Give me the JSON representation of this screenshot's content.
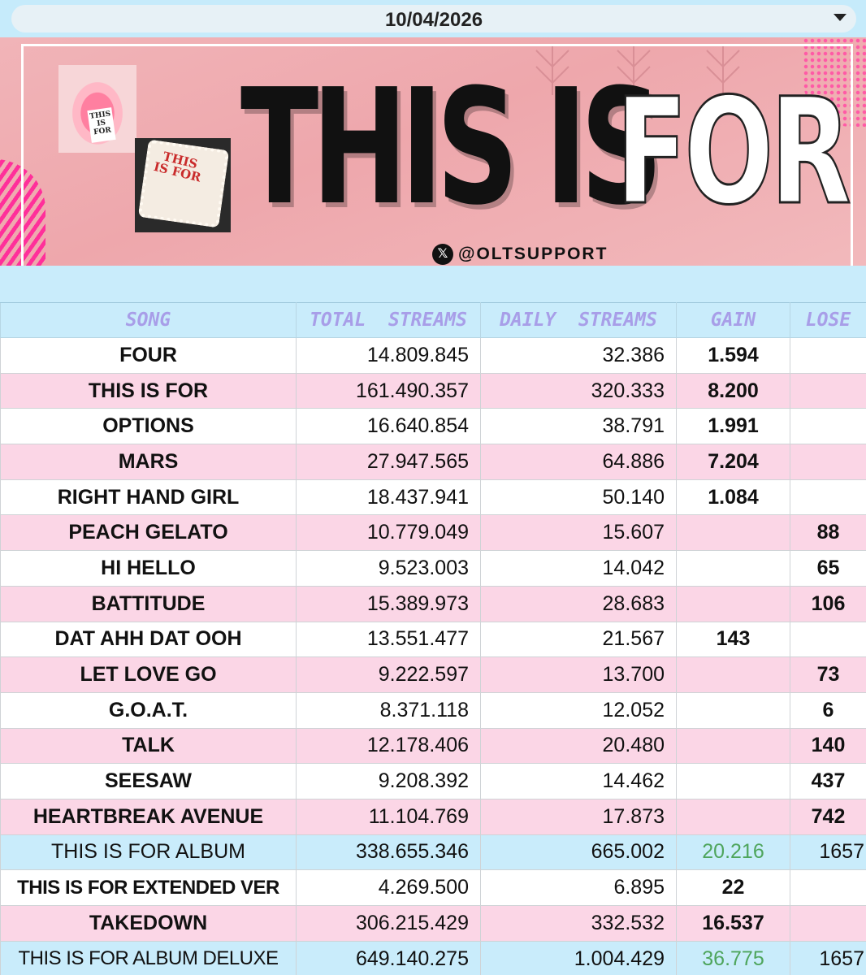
{
  "date_selector": {
    "value": "10/04/2026"
  },
  "banner": {
    "title_solid": "THIS IS",
    "title_outline": "FOR",
    "handle": "@OLTSUPPORT",
    "lips_card_text": "THIS IS FOR",
    "cake_text": "THIS IS FOR"
  },
  "table": {
    "headers": [
      "SONG",
      "TOTAL  STREAMS",
      "DAILY  STREAMS",
      "GAIN",
      "LOSE"
    ],
    "rows": [
      {
        "song": "FOUR",
        "total": "14.809.845",
        "daily": "32.386",
        "gain": "1.594",
        "lose": ""
      },
      {
        "song": "THIS IS FOR",
        "total": "161.490.357",
        "daily": "320.333",
        "gain": "8.200",
        "lose": ""
      },
      {
        "song": "OPTIONS",
        "total": "16.640.854",
        "daily": "38.791",
        "gain": "1.991",
        "lose": ""
      },
      {
        "song": "MARS",
        "total": "27.947.565",
        "daily": "64.886",
        "gain": "7.204",
        "lose": ""
      },
      {
        "song": "RIGHT HAND GIRL",
        "total": "18.437.941",
        "daily": "50.140",
        "gain": "1.084",
        "lose": ""
      },
      {
        "song": "PEACH GELATO",
        "total": "10.779.049",
        "daily": "15.607",
        "gain": "",
        "lose": "88"
      },
      {
        "song": "HI HELLO",
        "total": "9.523.003",
        "daily": "14.042",
        "gain": "",
        "lose": "65"
      },
      {
        "song": "BATTITUDE",
        "total": "15.389.973",
        "daily": "28.683",
        "gain": "",
        "lose": "106"
      },
      {
        "song": "DAT AHH DAT OOH",
        "total": "13.551.477",
        "daily": "21.567",
        "gain": "143",
        "lose": ""
      },
      {
        "song": "LET LOVE GO",
        "total": "9.222.597",
        "daily": "13.700",
        "gain": "",
        "lose": "73"
      },
      {
        "song": "G.O.A.T.",
        "total": "8.371.118",
        "daily": "12.052",
        "gain": "",
        "lose": "6"
      },
      {
        "song": "TALK",
        "total": "12.178.406",
        "daily": "20.480",
        "gain": "",
        "lose": "140"
      },
      {
        "song": "SEESAW",
        "total": "9.208.392",
        "daily": "14.462",
        "gain": "",
        "lose": "437"
      },
      {
        "song": "HEARTBREAK AVENUE",
        "total": "11.104.769",
        "daily": "17.873",
        "gain": "",
        "lose": "742"
      },
      {
        "song": "THIS IS FOR ALBUM",
        "total": "338.655.346",
        "daily": "665.002",
        "gain": "20.216",
        "lose": "1657"
      },
      {
        "song": "THIS IS FOR EXTENDED VER",
        "total": "4.269.500",
        "daily": "6.895",
        "gain": "22",
        "lose": ""
      },
      {
        "song": "TAKEDOWN",
        "total": "306.215.429",
        "daily": "332.532",
        "gain": "16.537",
        "lose": ""
      },
      {
        "song": "THIS IS FOR ALBUM DELUXE",
        "total": "649.140.275",
        "daily": "1.004.429",
        "gain": "36.775",
        "lose": "1657"
      }
    ]
  },
  "colors": {
    "header_bg": "#c9ecfb",
    "header_text": "#a89ee8",
    "row_pink": "#fbd6e6",
    "row_white": "#ffffff",
    "gain_green": "#5aa148",
    "lose_red": "#c6121f",
    "banner_pink": "#eea7ac"
  }
}
